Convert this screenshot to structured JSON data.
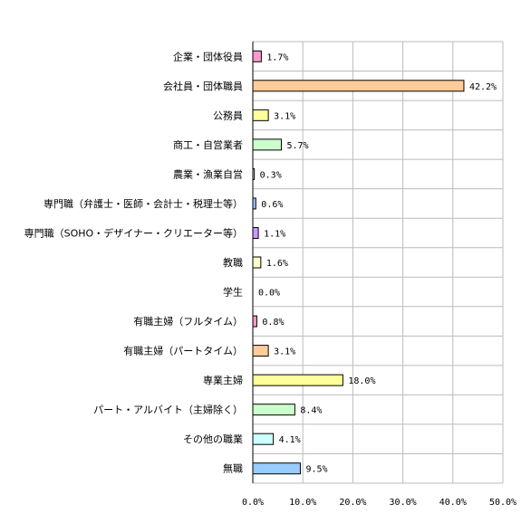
{
  "chart_data": {
    "type": "bar",
    "orientation": "horizontal",
    "categories": [
      "企業・団体役員",
      "会社員・団体職員",
      "公務員",
      "商工・自営業者",
      "農業・漁業自営",
      "専門職（弁護士・医師・会計士・税理士等）",
      "専門職（SOHO・デザイナー・クリエーター等）",
      "教職",
      "学生",
      "有職主婦（フルタイム）",
      "有職主婦（パートタイム）",
      "専業主婦",
      "パート・アルバイト（主婦除く）",
      "その他の職業",
      "無職"
    ],
    "values": [
      1.7,
      42.2,
      3.1,
      5.7,
      0.3,
      0.6,
      1.1,
      1.6,
      0.0,
      0.8,
      3.1,
      18.0,
      8.4,
      4.1,
      9.5
    ],
    "value_labels": [
      "1.7%",
      "42.2%",
      "3.1%",
      "5.7%",
      "0.3%",
      "0.6%",
      "1.1%",
      "1.6%",
      "0.0%",
      "0.8%",
      "3.1%",
      "18.0%",
      "8.4%",
      "4.1%",
      "9.5%"
    ],
    "bar_colors": [
      "#ff99cc",
      "#ffcc99",
      "#ffff99",
      "#ccffcc",
      "#ccffff",
      "#99ccff",
      "#cc99ff",
      "#ffffcc",
      "#ccffff",
      "#ff99cc",
      "#ffcc99",
      "#ffff99",
      "#ccffcc",
      "#ccffff",
      "#99ccff"
    ],
    "xlim": [
      0,
      50
    ],
    "xticks": [
      0,
      10,
      20,
      30,
      40,
      50
    ],
    "xtick_labels": [
      "0.0%",
      "10.0%",
      "20.0%",
      "30.0%",
      "40.0%",
      "50.0%"
    ],
    "grid": true,
    "title": "",
    "xlabel": "",
    "ylabel": ""
  }
}
